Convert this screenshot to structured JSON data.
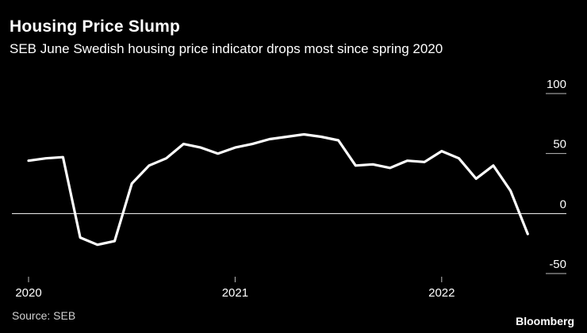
{
  "title": "Housing Price Slump",
  "subtitle": "SEB June Swedish housing price indicator drops most since spring 2020",
  "source": "Source: SEB",
  "brand": "Bloomberg",
  "colors": {
    "background": "#000000",
    "line": "#ffffff",
    "zero_line": "#ffffff",
    "text": "#ffffff"
  },
  "chart_data": {
    "type": "line",
    "title": "Housing Price Slump",
    "xlabel": "",
    "ylabel": "",
    "ylim": [
      -50,
      100
    ],
    "yticks": [
      100,
      50,
      0,
      -50
    ],
    "ytick_labels": [
      "100",
      "50",
      "0",
      "-50"
    ],
    "x_tick_labels": [
      "2020",
      "2021",
      "2022"
    ],
    "x_tick_positions": [
      0,
      12,
      24
    ],
    "grid": false,
    "zero_line": true,
    "series": [
      {
        "name": "SEB housing price indicator",
        "x": [
          0,
          1,
          2,
          3,
          4,
          5,
          6,
          7,
          8,
          9,
          10,
          11,
          12,
          13,
          14,
          15,
          16,
          17,
          18,
          19,
          20,
          21,
          22,
          23,
          24,
          25,
          26,
          27,
          28,
          29
        ],
        "values": [
          44,
          46,
          47,
          -20,
          -26,
          -23,
          25,
          40,
          46,
          58,
          55,
          50,
          55,
          58,
          62,
          64,
          66,
          64,
          61,
          40,
          41,
          38,
          44,
          43,
          52,
          46,
          29,
          40,
          19,
          -17
        ]
      }
    ]
  }
}
